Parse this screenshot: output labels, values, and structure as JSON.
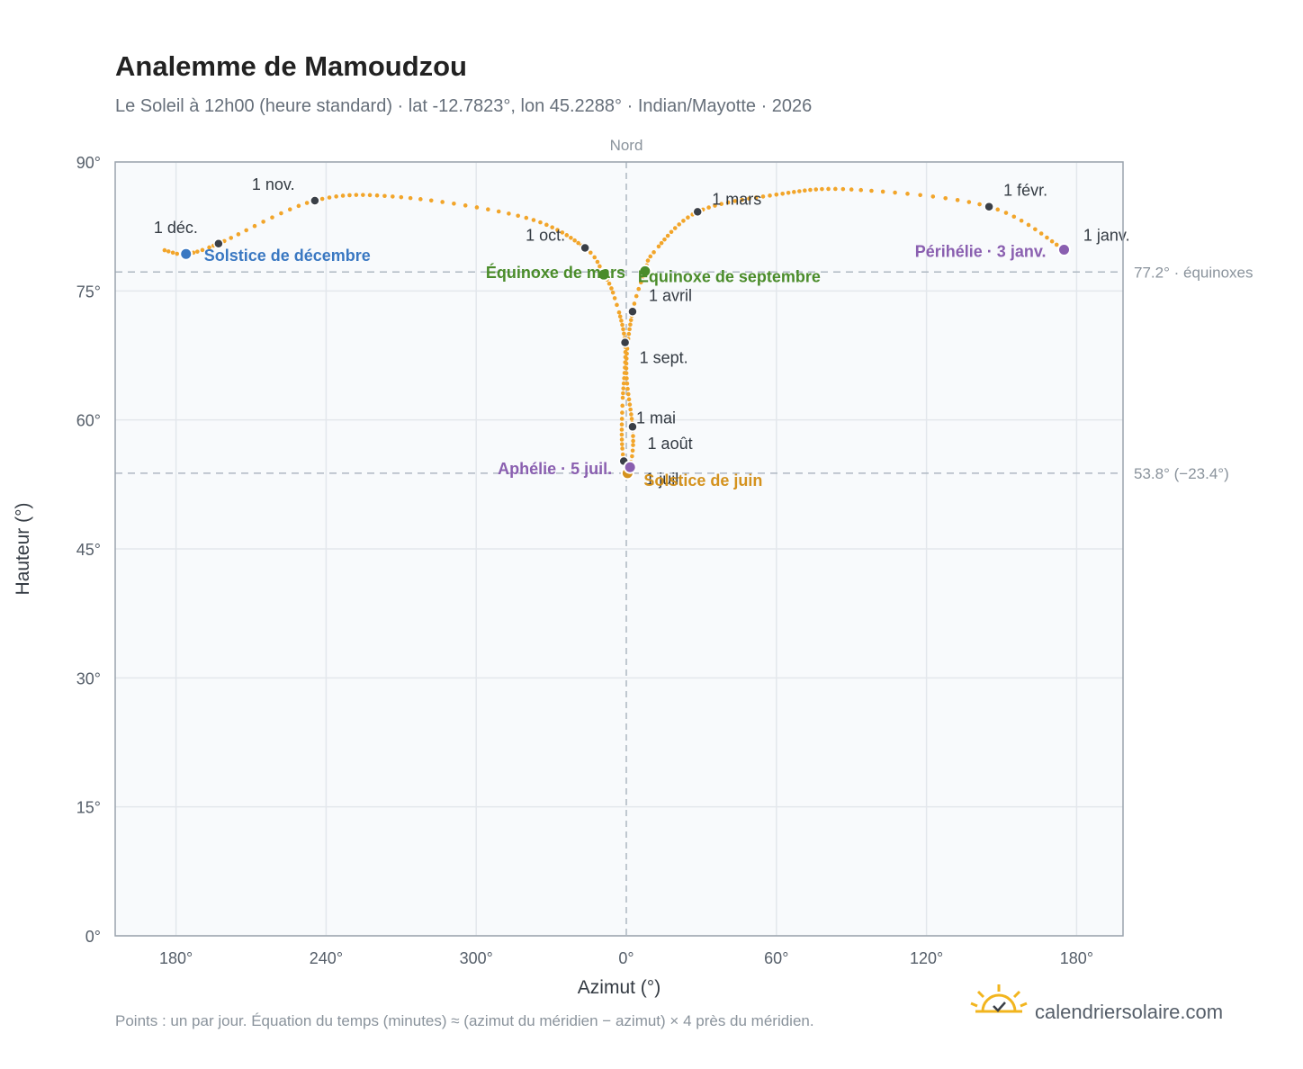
{
  "chart_data": {
    "type": "scatter",
    "title": "Analemme de Mamoudzou",
    "subtitle": "Le Soleil à 12h00 (heure standard) · lat -12.7823°, lon 45.2288° · Indian/Mayotte · 2026",
    "xlabel": "Azimut (°)",
    "ylabel": "Hauteur (°)",
    "x_ticks": [
      "180°",
      "240°",
      "300°",
      "0°",
      "60°",
      "120°",
      "180°"
    ],
    "y_ticks": [
      "0°",
      "15°",
      "30°",
      "45°",
      "60°",
      "75°",
      "90°"
    ],
    "ylim": [
      0,
      90
    ],
    "x_axis_note": "azimut déroulé de 180° à 180° en passant par 0° (Nord)",
    "north_label": "Nord",
    "reference_lines": [
      {
        "value": 77.2,
        "label": "77.2° · équinoxes"
      },
      {
        "value": 53.8,
        "label": "53.8° (−23.4°)"
      }
    ],
    "month_markers": [
      {
        "label": "1 janv.",
        "az": 175.5,
        "alt": 79.8
      },
      {
        "label": "1 févr.",
        "az": 145.0,
        "alt": 84.8
      },
      {
        "label": "1 mars",
        "az": 28.5,
        "alt": 84.2
      },
      {
        "label": "1 avril",
        "az": 2.5,
        "alt": 72.6
      },
      {
        "label": "1 mai",
        "az": 2.5,
        "alt": 59.2
      },
      {
        "label": "1 juil.",
        "az": 359.0,
        "alt": 55.2
      },
      {
        "label": "1 août",
        "az": 2.0,
        "alt": 54.5
      },
      {
        "label": "1 sept.",
        "az": 359.5,
        "alt": 69.0
      },
      {
        "label": "1 oct.",
        "az": 343.5,
        "alt": 80.0
      },
      {
        "label": "1 nov.",
        "az": 235.5,
        "alt": 85.5
      },
      {
        "label": "1 déc.",
        "az": 197.0,
        "alt": 80.5
      }
    ],
    "events": [
      {
        "label": "Solstice de décembre",
        "az": 184.0,
        "alt": 79.3,
        "color": "#3a78c2"
      },
      {
        "label": "Équinoxe de mars",
        "az": 351.0,
        "alt": 76.9,
        "color": "#4a8c2a"
      },
      {
        "label": "Équinoxe de septembre",
        "az": 7.5,
        "alt": 77.3,
        "color": "#4a8c2a"
      },
      {
        "label": "Solstice de juin",
        "az": 0.5,
        "alt": 53.8,
        "color": "#d4921e"
      },
      {
        "label": "Aphélie · 5 juil.",
        "az": 1.5,
        "alt": 54.5,
        "color": "#8a5fb0"
      },
      {
        "label": "Périhélie · 3 janv.",
        "az": 175.0,
        "alt": 79.8,
        "color": "#8a5fb0"
      }
    ],
    "colors": {
      "curve": "#f2a52a",
      "marker": "#3a3f47",
      "grid": "#e3e7ec",
      "plot_bg": "#f8fafc",
      "frame": "#9aa3ad",
      "ref_line": "#aeb8c2"
    }
  },
  "footer": {
    "note": "Points : un par jour. Équation du temps (minutes) ≈ (azimut du méridien − azimut) × 4 près du méridien.",
    "brand": "calendriersolaire.com",
    "brand_icon": "sun-icon"
  }
}
